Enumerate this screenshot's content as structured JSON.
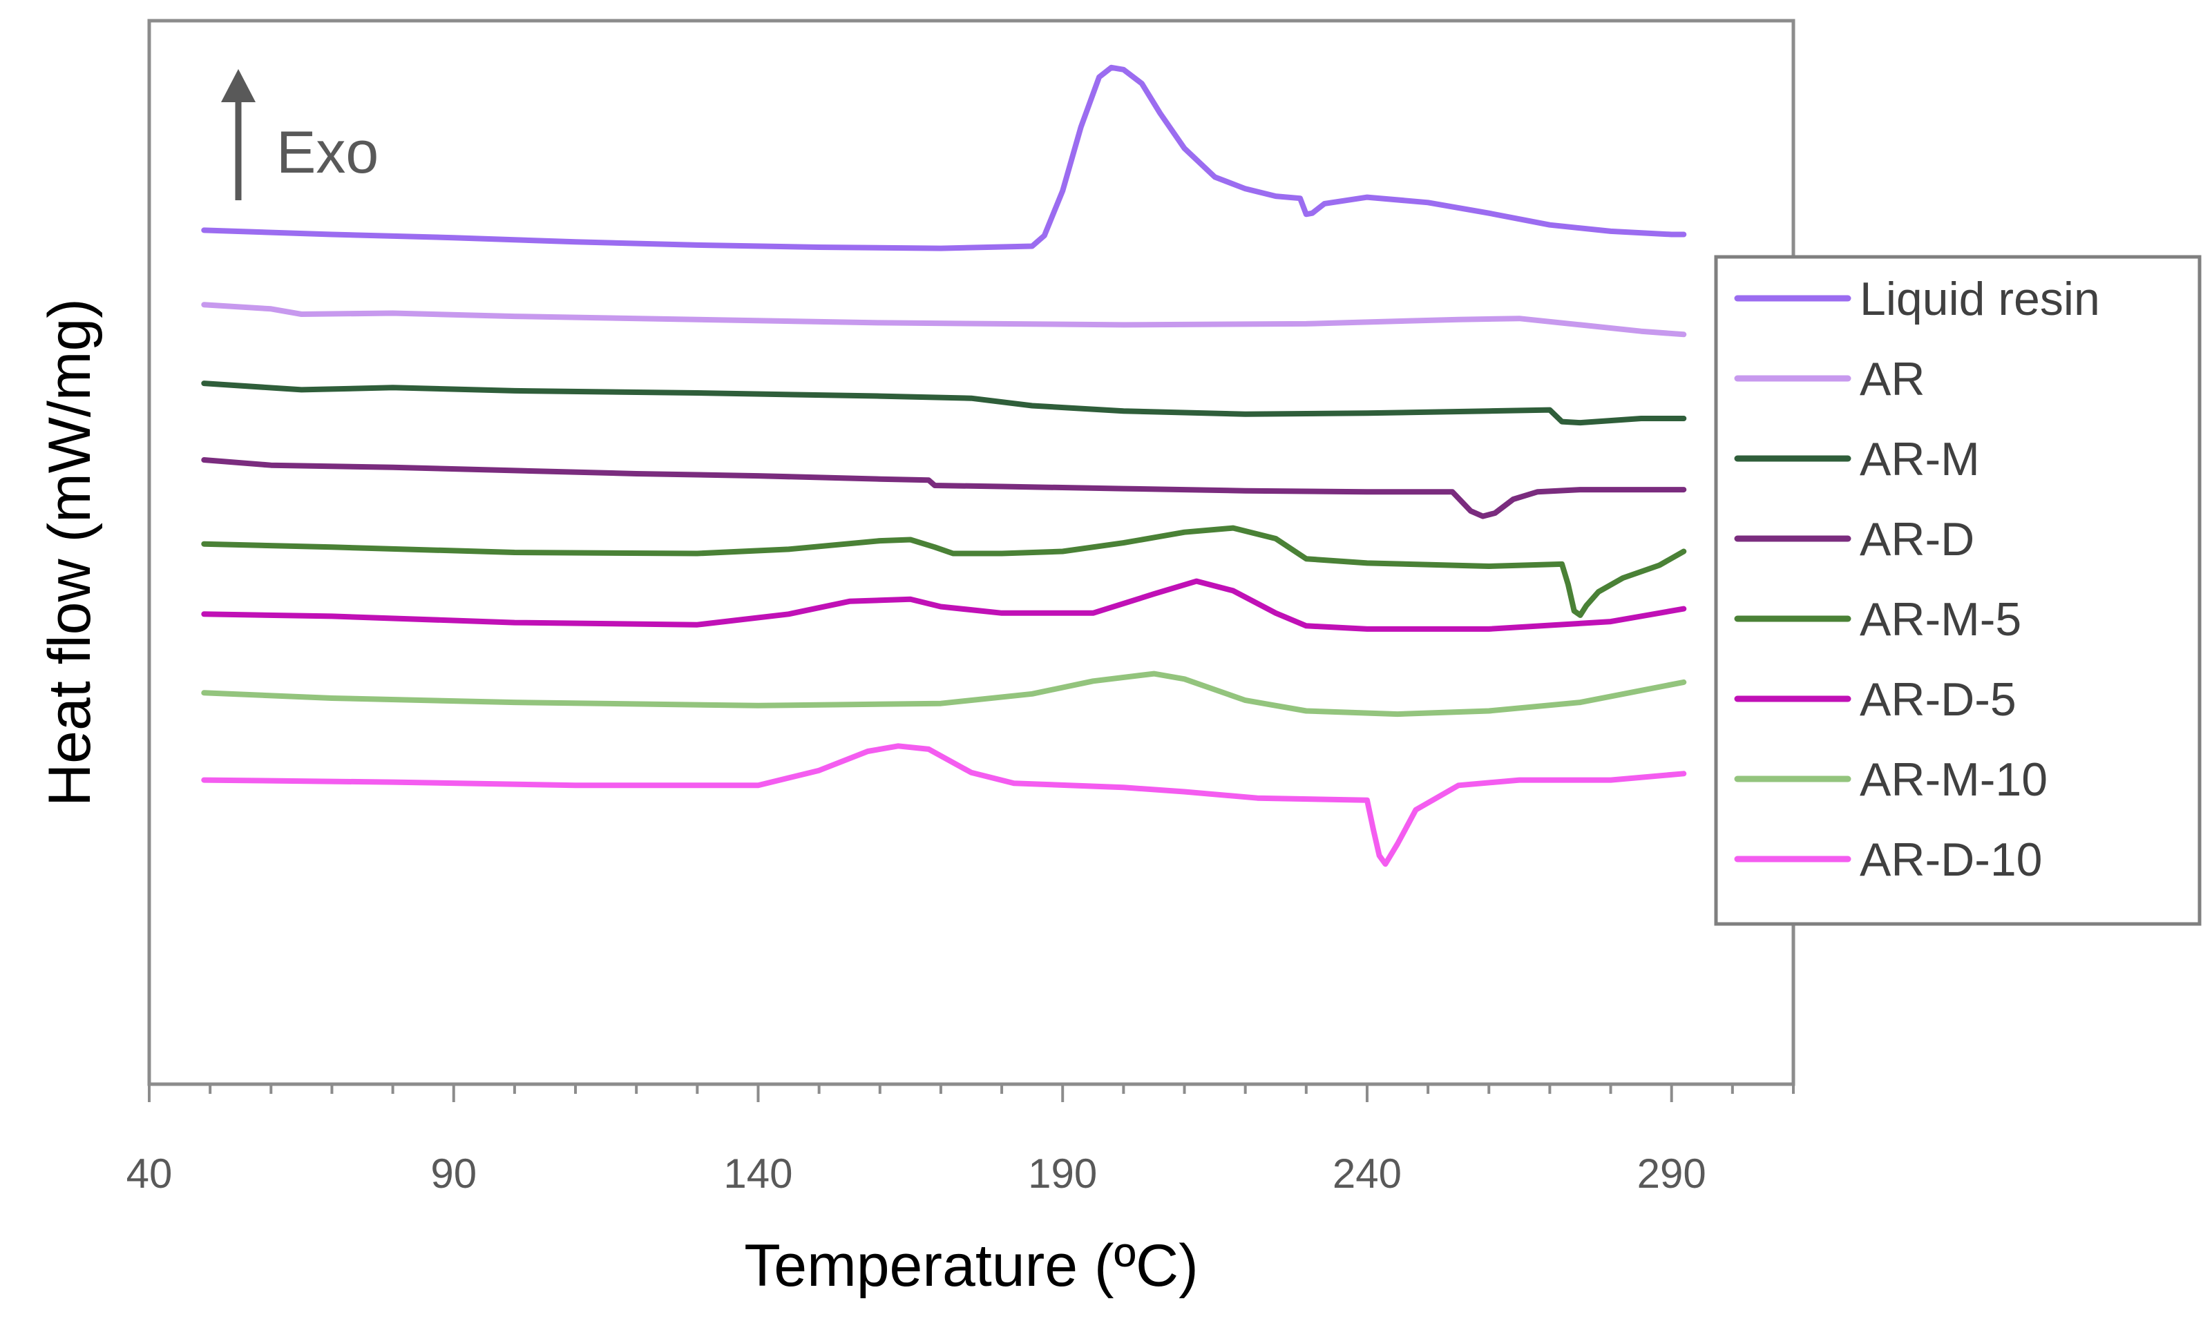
{
  "chart_data": {
    "type": "line",
    "title": "",
    "xlabel": "Temperature (ºC)",
    "ylabel": "Heat flow (mW/mg)",
    "xlim": [
      40,
      310
    ],
    "ylim": [
      0,
      100
    ],
    "xticks": [
      40,
      90,
      140,
      190,
      240,
      290
    ],
    "minor_tick_step": 10,
    "yticks_shown": false,
    "grid": false,
    "legend_position": "right",
    "annotation": "Exo",
    "annotation_arrow": "up",
    "series": [
      {
        "name": "Liquid resin",
        "color": "#9B6CF0",
        "points": [
          [
            49,
            80.3
          ],
          [
            70,
            79.9
          ],
          [
            90,
            79.6
          ],
          [
            110,
            79.2
          ],
          [
            130,
            78.9
          ],
          [
            150,
            78.7
          ],
          [
            170,
            78.6
          ],
          [
            185,
            78.8
          ],
          [
            187,
            79.8
          ],
          [
            190,
            84
          ],
          [
            193,
            90
          ],
          [
            196,
            94.7
          ],
          [
            198,
            95.6
          ],
          [
            200,
            95.4
          ],
          [
            203,
            94.1
          ],
          [
            206,
            91.3
          ],
          [
            210,
            88
          ],
          [
            215,
            85.3
          ],
          [
            220,
            84.2
          ],
          [
            225,
            83.5
          ],
          [
            229,
            83.3
          ],
          [
            230,
            81.8
          ],
          [
            231,
            81.9
          ],
          [
            233,
            82.8
          ],
          [
            240,
            83.4
          ],
          [
            250,
            82.9
          ],
          [
            260,
            81.9
          ],
          [
            270,
            80.8
          ],
          [
            280,
            80.2
          ],
          [
            290,
            79.9
          ],
          [
            292,
            79.9
          ]
        ]
      },
      {
        "name": "AR",
        "color": "#C799EE",
        "points": [
          [
            49,
            73.3
          ],
          [
            60,
            72.9
          ],
          [
            65,
            72.4
          ],
          [
            80,
            72.5
          ],
          [
            100,
            72.2
          ],
          [
            130,
            71.9
          ],
          [
            160,
            71.6
          ],
          [
            200,
            71.4
          ],
          [
            230,
            71.5
          ],
          [
            255,
            71.9
          ],
          [
            265,
            72.0
          ],
          [
            275,
            71.4
          ],
          [
            285,
            70.8
          ],
          [
            292,
            70.5
          ]
        ]
      },
      {
        "name": "AR-M",
        "color": "#2F5E3A",
        "points": [
          [
            49,
            65.9
          ],
          [
            65,
            65.3
          ],
          [
            80,
            65.5
          ],
          [
            100,
            65.2
          ],
          [
            130,
            65.0
          ],
          [
            160,
            64.7
          ],
          [
            175,
            64.5
          ],
          [
            185,
            63.8
          ],
          [
            200,
            63.3
          ],
          [
            220,
            63.0
          ],
          [
            240,
            63.1
          ],
          [
            260,
            63.3
          ],
          [
            270,
            63.4
          ],
          [
            272,
            62.3
          ],
          [
            275,
            62.2
          ],
          [
            285,
            62.6
          ],
          [
            292,
            62.6
          ]
        ]
      },
      {
        "name": "AR-D",
        "color": "#7A2C7E",
        "points": [
          [
            49,
            58.7
          ],
          [
            60,
            58.2
          ],
          [
            80,
            58.0
          ],
          [
            100,
            57.7
          ],
          [
            120,
            57.4
          ],
          [
            140,
            57.2
          ],
          [
            160,
            56.9
          ],
          [
            168,
            56.8
          ],
          [
            169,
            56.3
          ],
          [
            180,
            56.2
          ],
          [
            200,
            56.0
          ],
          [
            220,
            55.8
          ],
          [
            240,
            55.7
          ],
          [
            254,
            55.7
          ],
          [
            257,
            53.9
          ],
          [
            259,
            53.4
          ],
          [
            261,
            53.7
          ],
          [
            264,
            55.0
          ],
          [
            268,
            55.7
          ],
          [
            275,
            55.9
          ],
          [
            292,
            55.9
          ]
        ]
      },
      {
        "name": "AR-M-5",
        "color": "#4A8136",
        "points": [
          [
            49,
            50.8
          ],
          [
            70,
            50.5
          ],
          [
            100,
            50.0
          ],
          [
            130,
            49.9
          ],
          [
            145,
            50.3
          ],
          [
            160,
            51.1
          ],
          [
            165,
            51.2
          ],
          [
            169,
            50.5
          ],
          [
            172,
            49.9
          ],
          [
            180,
            49.9
          ],
          [
            190,
            50.1
          ],
          [
            200,
            50.9
          ],
          [
            210,
            51.9
          ],
          [
            218,
            52.3
          ],
          [
            225,
            51.3
          ],
          [
            230,
            49.4
          ],
          [
            240,
            49.0
          ],
          [
            260,
            48.7
          ],
          [
            272,
            48.9
          ],
          [
            273,
            47
          ],
          [
            274,
            44.5
          ],
          [
            275,
            44.1
          ],
          [
            276,
            45
          ],
          [
            278,
            46.3
          ],
          [
            282,
            47.6
          ],
          [
            288,
            48.8
          ],
          [
            292,
            50.1
          ]
        ]
      },
      {
        "name": "AR-D-5",
        "color": "#C010B6",
        "points": [
          [
            49,
            44.2
          ],
          [
            70,
            44.0
          ],
          [
            100,
            43.4
          ],
          [
            130,
            43.2
          ],
          [
            145,
            44.2
          ],
          [
            155,
            45.4
          ],
          [
            165,
            45.6
          ],
          [
            170,
            44.9
          ],
          [
            180,
            44.3
          ],
          [
            195,
            44.3
          ],
          [
            205,
            46.1
          ],
          [
            212,
            47.3
          ],
          [
            218,
            46.4
          ],
          [
            225,
            44.3
          ],
          [
            230,
            43.1
          ],
          [
            240,
            42.8
          ],
          [
            260,
            42.8
          ],
          [
            280,
            43.5
          ],
          [
            292,
            44.7
          ]
        ]
      },
      {
        "name": "AR-M-10",
        "color": "#93C47D",
        "points": [
          [
            49,
            36.8
          ],
          [
            70,
            36.3
          ],
          [
            100,
            35.9
          ],
          [
            140,
            35.6
          ],
          [
            170,
            35.8
          ],
          [
            185,
            36.7
          ],
          [
            195,
            37.9
          ],
          [
            205,
            38.6
          ],
          [
            210,
            38.1
          ],
          [
            220,
            36.1
          ],
          [
            230,
            35.1
          ],
          [
            245,
            34.8
          ],
          [
            260,
            35.1
          ],
          [
            275,
            35.9
          ],
          [
            292,
            37.8
          ]
        ]
      },
      {
        "name": "AR-D-10",
        "color": "#F45CF0",
        "points": [
          [
            49,
            28.6
          ],
          [
            80,
            28.4
          ],
          [
            110,
            28.1
          ],
          [
            140,
            28.1
          ],
          [
            150,
            29.5
          ],
          [
            158,
            31.3
          ],
          [
            163,
            31.8
          ],
          [
            168,
            31.5
          ],
          [
            175,
            29.3
          ],
          [
            182,
            28.3
          ],
          [
            200,
            27.9
          ],
          [
            210,
            27.5
          ],
          [
            222,
            26.9
          ],
          [
            240,
            26.7
          ],
          [
            241,
            24
          ],
          [
            242,
            21.5
          ],
          [
            243,
            20.7
          ],
          [
            245,
            22.6
          ],
          [
            248,
            25.8
          ],
          [
            255,
            28.1
          ],
          [
            265,
            28.6
          ],
          [
            280,
            28.6
          ],
          [
            292,
            29.2
          ]
        ]
      }
    ]
  }
}
